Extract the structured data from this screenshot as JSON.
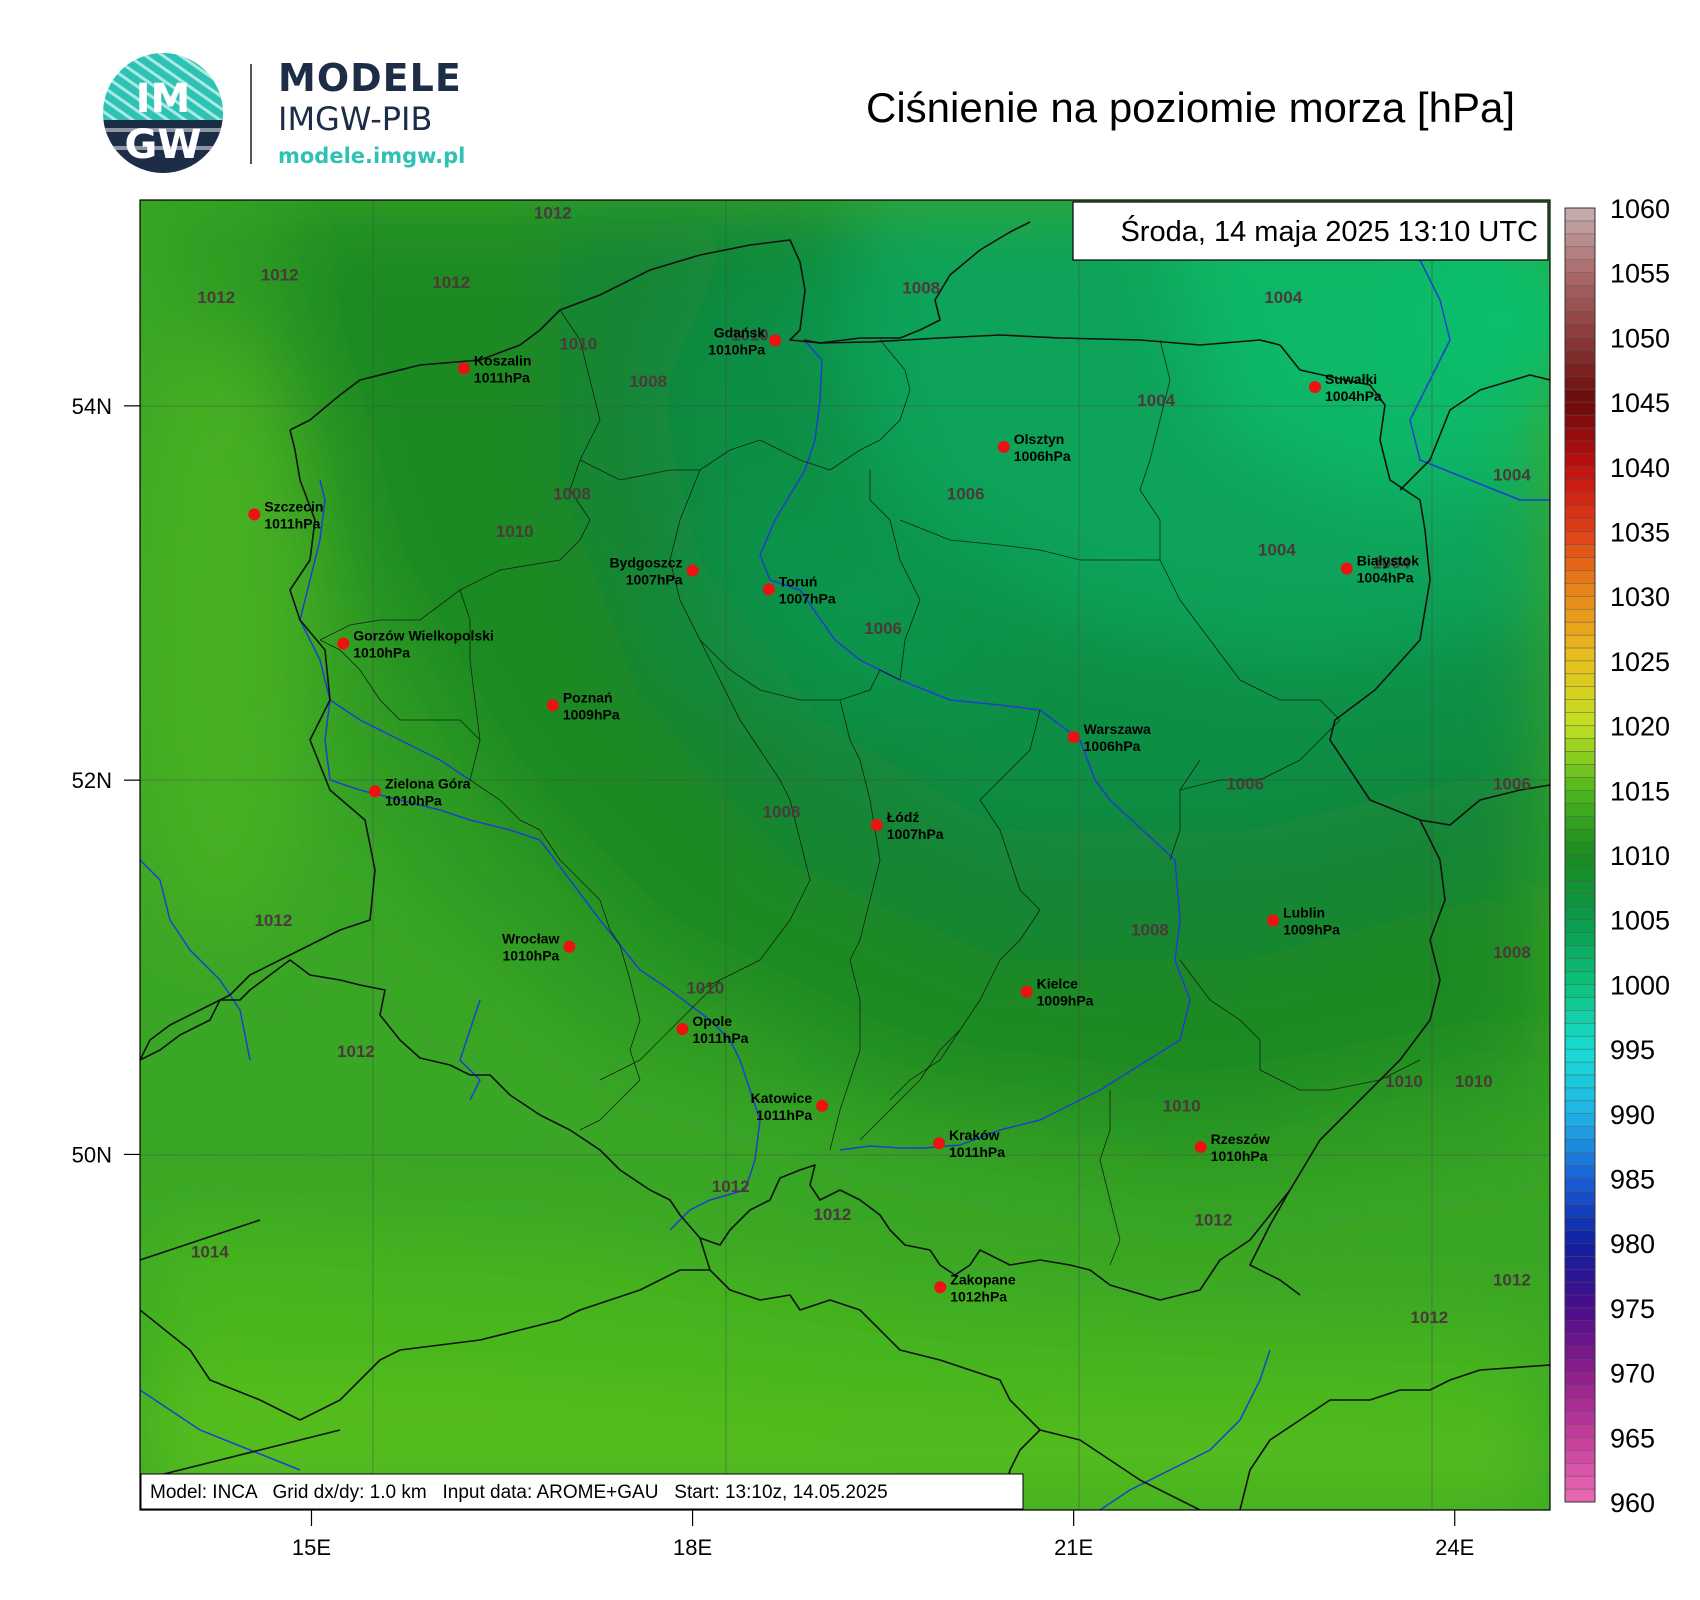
{
  "logo": {
    "badge_top": "IM",
    "badge_bottom": "GW",
    "title": "MODELE",
    "subtitle": "IMGW-PIB",
    "url": "modele.imgw.pl"
  },
  "map": {
    "title": "Ciśnienie na poziomie morza [hPa]",
    "datetime": "Środa, 14 maja 2025 13:10 UTC",
    "footer": "Model: INCA   Grid dx/dy: 1.0 km   Input data: AROME+GAU   Start: 13:10z, 14.05.2025",
    "lon_range": [
      13.65,
      24.75
    ],
    "lat_range": [
      48.1,
      55.1
    ],
    "x_ticks": [
      {
        "value": 15,
        "label": "15E"
      },
      {
        "value": 18,
        "label": "18E"
      },
      {
        "value": 21,
        "label": "21E"
      },
      {
        "value": 24,
        "label": "24E"
      }
    ],
    "y_ticks": [
      {
        "value": 50,
        "label": "50N"
      },
      {
        "value": 52,
        "label": "52N"
      },
      {
        "value": 54,
        "label": "54N"
      }
    ]
  },
  "colorbar": {
    "min": 960,
    "max": 1060,
    "labels": [
      "1060",
      "1055",
      "1050",
      "1045",
      "1040",
      "1035",
      "1030",
      "1025",
      "1020",
      "1015",
      "1010",
      "1005",
      "1000",
      "995",
      "990",
      "985",
      "980",
      "975",
      "970",
      "965",
      "960"
    ]
  },
  "cities": [
    {
      "name": "Gdańsk",
      "value": "1010hPa",
      "lon": 18.65,
      "lat": 54.35,
      "anchor": "end"
    },
    {
      "name": "Koszalin",
      "value": "1011hPa",
      "lon": 16.2,
      "lat": 54.2,
      "anchor": "start"
    },
    {
      "name": "Suwałki",
      "value": "1004hPa",
      "lon": 22.9,
      "lat": 54.1,
      "anchor": "start"
    },
    {
      "name": "Olsztyn",
      "value": "1006hPa",
      "lon": 20.45,
      "lat": 53.78,
      "anchor": "start"
    },
    {
      "name": "Szczecin",
      "value": "1011hPa",
      "lon": 14.55,
      "lat": 53.42,
      "anchor": "start"
    },
    {
      "name": "Białystok",
      "value": "1004hPa",
      "lon": 23.15,
      "lat": 53.13,
      "anchor": "start"
    },
    {
      "name": "Bydgoszcz",
      "value": "1007hPa",
      "lon": 18.0,
      "lat": 53.12,
      "anchor": "end"
    },
    {
      "name": "Toruń",
      "value": "1007hPa",
      "lon": 18.6,
      "lat": 53.02,
      "anchor": "start"
    },
    {
      "name": "Gorzów Wielkopolski",
      "value": "1010hPa",
      "lon": 15.25,
      "lat": 52.73,
      "anchor": "start"
    },
    {
      "name": "Poznań",
      "value": "1009hPa",
      "lon": 16.9,
      "lat": 52.4,
      "anchor": "start"
    },
    {
      "name": "Warszawa",
      "value": "1006hPa",
      "lon": 21.0,
      "lat": 52.23,
      "anchor": "start"
    },
    {
      "name": "Zielona Góra",
      "value": "1010hPa",
      "lon": 15.5,
      "lat": 51.94,
      "anchor": "start"
    },
    {
      "name": "Łódź",
      "value": "1007hPa",
      "lon": 19.45,
      "lat": 51.76,
      "anchor": "start"
    },
    {
      "name": "Lublin",
      "value": "1009hPa",
      "lon": 22.57,
      "lat": 51.25,
      "anchor": "start"
    },
    {
      "name": "Wrocław",
      "value": "1010hPa",
      "lon": 17.03,
      "lat": 51.11,
      "anchor": "end"
    },
    {
      "name": "Kielce",
      "value": "1009hPa",
      "lon": 20.63,
      "lat": 50.87,
      "anchor": "start"
    },
    {
      "name": "Opole",
      "value": "1011hPa",
      "lon": 17.92,
      "lat": 50.67,
      "anchor": "start"
    },
    {
      "name": "Katowice",
      "value": "1011hPa",
      "lon": 19.02,
      "lat": 50.26,
      "anchor": "end"
    },
    {
      "name": "Rzeszów",
      "value": "1010hPa",
      "lon": 22.0,
      "lat": 50.04,
      "anchor": "start"
    },
    {
      "name": "Kraków",
      "value": "1011hPa",
      "lon": 19.94,
      "lat": 50.06,
      "anchor": "start"
    },
    {
      "name": "Zakopane",
      "value": "1012hPa",
      "lon": 19.95,
      "lat": 49.29,
      "anchor": "start"
    }
  ],
  "contour_labels": [
    {
      "text": "1012",
      "lon": 16.9,
      "lat": 55.0
    },
    {
      "text": "1012",
      "lon": 14.75,
      "lat": 54.67
    },
    {
      "text": "1012",
      "lon": 14.25,
      "lat": 54.55
    },
    {
      "text": "1012",
      "lon": 16.1,
      "lat": 54.63
    },
    {
      "text": "1010",
      "lon": 17.1,
      "lat": 54.3
    },
    {
      "text": "1010",
      "lon": 18.45,
      "lat": 54.35
    },
    {
      "text": "1008",
      "lon": 19.8,
      "lat": 54.6
    },
    {
      "text": "1008",
      "lon": 17.65,
      "lat": 54.1
    },
    {
      "text": "1004",
      "lon": 22.65,
      "lat": 54.55
    },
    {
      "text": "1004",
      "lon": 21.65,
      "lat": 54.0
    },
    {
      "text": "1004",
      "lon": 24.45,
      "lat": 53.6
    },
    {
      "text": "1008",
      "lon": 17.05,
      "lat": 53.5
    },
    {
      "text": "1006",
      "lon": 20.15,
      "lat": 53.5
    },
    {
      "text": "1010",
      "lon": 16.6,
      "lat": 53.3
    },
    {
      "text": "1004",
      "lon": 22.6,
      "lat": 53.2
    },
    {
      "text": "1004",
      "lon": 23.5,
      "lat": 53.13
    },
    {
      "text": "1006",
      "lon": 19.5,
      "lat": 52.78
    },
    {
      "text": "1006",
      "lon": 22.35,
      "lat": 51.95
    },
    {
      "text": "1006",
      "lon": 24.45,
      "lat": 51.95
    },
    {
      "text": "1008",
      "lon": 18.7,
      "lat": 51.8
    },
    {
      "text": "1012",
      "lon": 14.7,
      "lat": 51.22
    },
    {
      "text": "1008",
      "lon": 21.6,
      "lat": 51.17
    },
    {
      "text": "1008",
      "lon": 24.45,
      "lat": 51.05
    },
    {
      "text": "1010",
      "lon": 18.1,
      "lat": 50.86
    },
    {
      "text": "1012",
      "lon": 15.35,
      "lat": 50.52
    },
    {
      "text": "1010",
      "lon": 23.6,
      "lat": 50.36
    },
    {
      "text": "1010",
      "lon": 24.15,
      "lat": 50.36
    },
    {
      "text": "1010",
      "lon": 21.85,
      "lat": 50.23
    },
    {
      "text": "1012",
      "lon": 18.3,
      "lat": 49.8
    },
    {
      "text": "1012",
      "lon": 19.1,
      "lat": 49.65
    },
    {
      "text": "1012",
      "lon": 22.1,
      "lat": 49.62
    },
    {
      "text": "1014",
      "lon": 14.2,
      "lat": 49.45
    },
    {
      "text": "1012",
      "lon": 24.45,
      "lat": 49.3
    },
    {
      "text": "1012",
      "lon": 23.8,
      "lat": 49.1
    }
  ]
}
